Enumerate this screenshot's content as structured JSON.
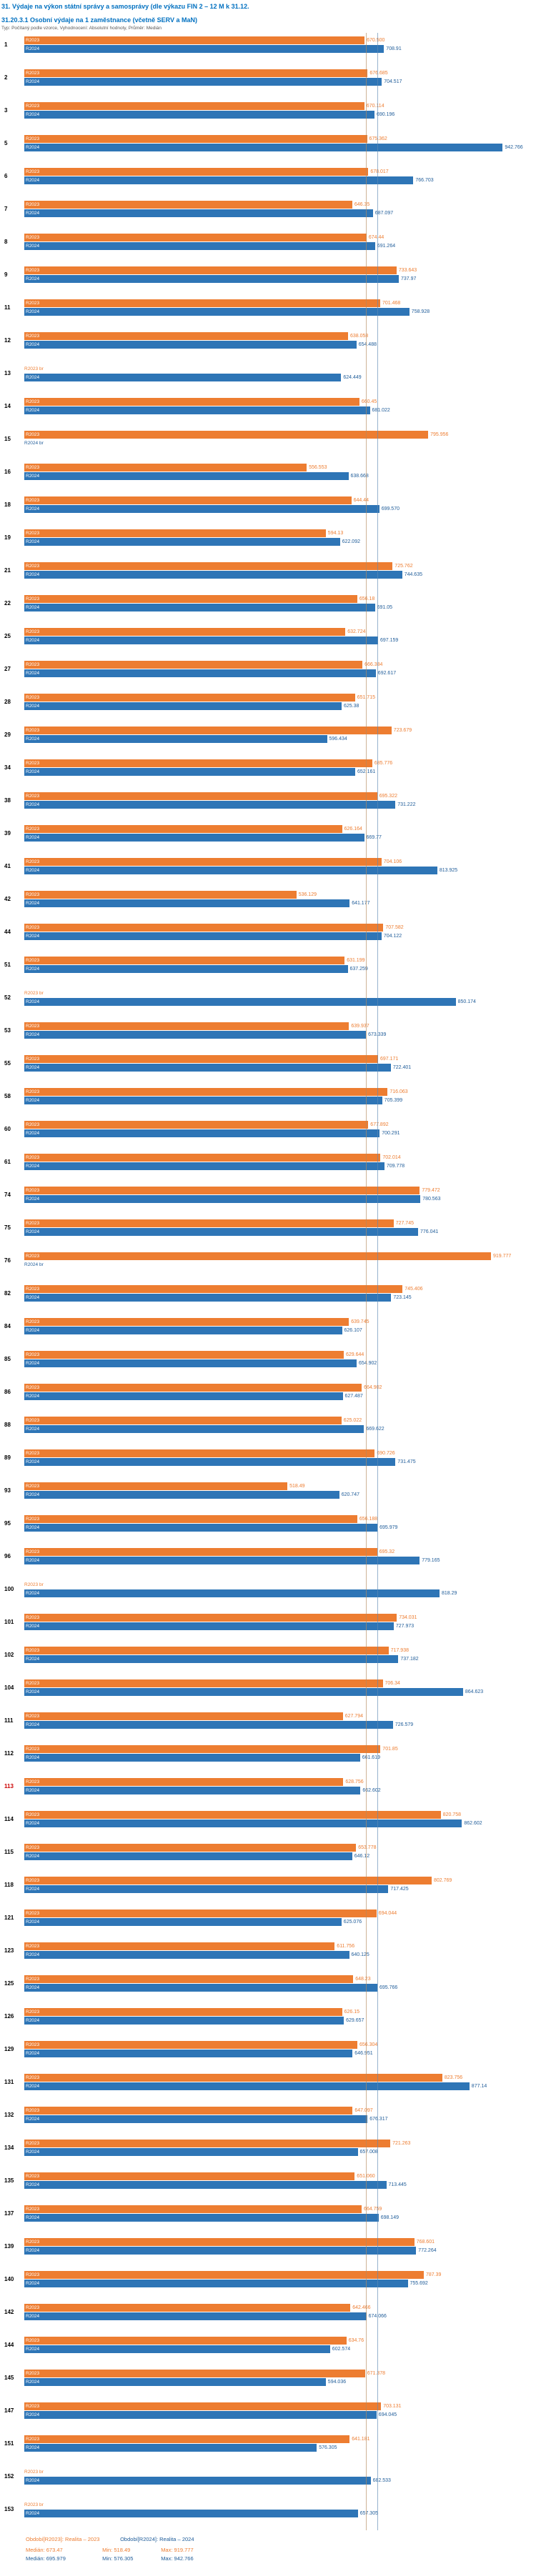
{
  "header": {
    "title": "31. Výdaje na výkon státní správy a samosprávy (dle výkazu FIN 2 – 12 M k 31.12.",
    "subtitle": "31.20.3.1 Osobní výdaje na 1 zaměstnance (včetně SERV a MaN)",
    "meta": "Typ: Počítaný podle vzorce, Vyhodnocení: Absolutní hodnoty, Průměr: Medián"
  },
  "colors": {
    "bar_2023": "#ED7D31",
    "bar_2024": "#2E75B6",
    "value_label_2023": "#ED7D31",
    "value_label_2024": "#1F5C99",
    "title_text": "#0070C0",
    "highlighted_row_label": "#CC0000",
    "median_line_2023": "#b38b5d",
    "median_line_2024": "#5d8bb3"
  },
  "legend": {
    "s2023": {
      "title": "Období[R2023]: Realita – 2023",
      "median": "Medián: 673.47",
      "min": "Min: 518.49",
      "max": "Max: 919.777"
    },
    "s2024": {
      "title": "Období[R2024]: Realita – 2024",
      "median": "Medián: 695.979",
      "min": "Min: 576.305",
      "max": "Max: 942.766"
    }
  },
  "chart_data": {
    "type": "bar",
    "orientation": "horizontal",
    "title": "31.20.3.1 Osobní výdaje na 1 zaměstnance (včetně SERV a MaN)",
    "xlim": [
      0,
      1000
    ],
    "grid": false,
    "legend_position": "bottom",
    "series_labels": {
      "s2023": "R2023",
      "s2024": "R2024"
    },
    "median_2023": 673.47,
    "median_2024": 695.979,
    "highlighted_row": "113",
    "rows": [
      {
        "id": "1",
        "v2023": 670.5,
        "t2023": "670.500",
        "v2024": 708.91,
        "t2024": "708.91"
      },
      {
        "id": "2",
        "v2023": 676.685,
        "t2023": "676.685",
        "v2024": 704.517,
        "t2024": "704.517"
      },
      {
        "id": "3",
        "v2023": 670.114,
        "t2023": "670.114",
        "v2024": 690.196,
        "t2024": "690.196"
      },
      {
        "id": "5",
        "v2023": 675.362,
        "t2023": "675.362",
        "v2024": 942.766,
        "t2024": "942.766"
      },
      {
        "id": "6",
        "v2023": 678.017,
        "t2023": "678.017",
        "v2024": 766.703,
        "t2024": "766.703"
      },
      {
        "id": "7",
        "v2023": 646.35,
        "t2023": "646.35",
        "v2024": 687.097,
        "t2024": "687.097"
      },
      {
        "id": "8",
        "v2023": 674.44,
        "t2023": "674.44",
        "v2024": 691.264,
        "t2024": "691.264"
      },
      {
        "id": "9",
        "v2023": 733.643,
        "t2023": "733.643",
        "v2024": 737.97,
        "t2024": "737.97"
      },
      {
        "id": "11",
        "v2023": 701.468,
        "t2023": "701.468",
        "v2024": 758.928,
        "t2024": "758.928"
      },
      {
        "id": "12",
        "v2023": 638.058,
        "t2023": "638.058",
        "v2024": 654.488,
        "t2024": "654.488"
      },
      {
        "id": "13",
        "v2023": null,
        "t2023": "br",
        "v2024": 624.449,
        "t2024": "624.449"
      },
      {
        "id": "14",
        "v2023": 660.45,
        "t2023": "660.45",
        "v2024": 681.022,
        "t2024": "681.022"
      },
      {
        "id": "15",
        "v2023": 795.956,
        "t2023": "795.956",
        "v2024": null,
        "t2024": "br"
      },
      {
        "id": "16",
        "v2023": 556.553,
        "t2023": "556.553",
        "v2024": 638.668,
        "t2024": "638.668"
      },
      {
        "id": "18",
        "v2023": 644.44,
        "t2023": "644.44",
        "v2024": 699.57,
        "t2024": "699.570"
      },
      {
        "id": "19",
        "v2023": 594.13,
        "t2023": "594.13",
        "v2024": 622.092,
        "t2024": "622.092"
      },
      {
        "id": "21",
        "v2023": 725.762,
        "t2023": "725.762",
        "v2024": 744.635,
        "t2024": "744.635"
      },
      {
        "id": "22",
        "v2023": 656.18,
        "t2023": "656.18",
        "v2024": 691.05,
        "t2024": "691.05"
      },
      {
        "id": "25",
        "v2023": 632.724,
        "t2023": "632.724",
        "v2024": 697.159,
        "t2024": "697.159"
      },
      {
        "id": "27",
        "v2023": 666.384,
        "t2023": "666.384",
        "v2024": 692.617,
        "t2024": "692.617"
      },
      {
        "id": "28",
        "v2023": 651.715,
        "t2023": "651.715",
        "v2024": 625.38,
        "t2024": "625.38"
      },
      {
        "id": "29",
        "v2023": 723.679,
        "t2023": "723.679",
        "v2024": 596.434,
        "t2024": "596.434"
      },
      {
        "id": "34",
        "v2023": 685.776,
        "t2023": "685.776",
        "v2024": 652.161,
        "t2024": "652.161"
      },
      {
        "id": "38",
        "v2023": 695.322,
        "t2023": "695.322",
        "v2024": 731.222,
        "t2024": "731.222"
      },
      {
        "id": "39",
        "v2023": 626.164,
        "t2023": "626.164",
        "v2024": 669.77,
        "t2024": "669.77"
      },
      {
        "id": "41",
        "v2023": 704.106,
        "t2023": "704.106",
        "v2024": 813.925,
        "t2024": "813.925"
      },
      {
        "id": "42",
        "v2023": 536.129,
        "t2023": "536.129",
        "v2024": 641.177,
        "t2024": "641.177"
      },
      {
        "id": "44",
        "v2023": 707.582,
        "t2023": "707.582",
        "v2024": 704.122,
        "t2024": "704.122"
      },
      {
        "id": "51",
        "v2023": 631.199,
        "t2023": "631.199",
        "v2024": 637.259,
        "t2024": "637.259"
      },
      {
        "id": "52",
        "v2023": null,
        "t2023": "br",
        "v2024": 850.174,
        "t2024": "850.174"
      },
      {
        "id": "53",
        "v2023": 639.937,
        "t2023": "639.937",
        "v2024": 673.339,
        "t2024": "673.339"
      },
      {
        "id": "55",
        "v2023": 697.171,
        "t2023": "697.171",
        "v2024": 722.401,
        "t2024": "722.401"
      },
      {
        "id": "58",
        "v2023": 716.063,
        "t2023": "716.063",
        "v2024": 705.399,
        "t2024": "705.399"
      },
      {
        "id": "60",
        "v2023": 677.892,
        "t2023": "677.892",
        "v2024": 700.291,
        "t2024": "700.291"
      },
      {
        "id": "61",
        "v2023": 702.014,
        "t2023": "702.014",
        "v2024": 709.778,
        "t2024": "709.778"
      },
      {
        "id": "74",
        "v2023": 779.472,
        "t2023": "779.472",
        "v2024": 780.563,
        "t2024": "780.563"
      },
      {
        "id": "75",
        "v2023": 727.745,
        "t2023": "727.745",
        "v2024": 776.041,
        "t2024": "776.041"
      },
      {
        "id": "76",
        "v2023": 919.777,
        "t2023": "919.777",
        "v2024": null,
        "t2024": "br"
      },
      {
        "id": "82",
        "v2023": 745.406,
        "t2023": "745.406",
        "v2024": 723.145,
        "t2024": "723.145"
      },
      {
        "id": "84",
        "v2023": 639.745,
        "t2023": "639.745",
        "v2024": 626.107,
        "t2024": "626.107"
      },
      {
        "id": "85",
        "v2023": 629.644,
        "t2023": "629.644",
        "v2024": 654.902,
        "t2024": "654.902"
      },
      {
        "id": "86",
        "v2023": 664.902,
        "t2023": "664.902",
        "v2024": 627.487,
        "t2024": "627.487"
      },
      {
        "id": "88",
        "v2023": 625.022,
        "t2023": "625.022",
        "v2024": 669.622,
        "t2024": "669.622"
      },
      {
        "id": "89",
        "v2023": 690.726,
        "t2023": "690.726",
        "v2024": 731.475,
        "t2024": "731.475"
      },
      {
        "id": "93",
        "v2023": 518.49,
        "t2023": "518.49",
        "v2024": 620.747,
        "t2024": "620.747"
      },
      {
        "id": "95",
        "v2023": 656.188,
        "t2023": "656.188",
        "v2024": 695.979,
        "t2024": "695.979"
      },
      {
        "id": "96",
        "v2023": 695.32,
        "t2023": "695.32",
        "v2024": 779.165,
        "t2024": "779.165"
      },
      {
        "id": "100",
        "v2023": null,
        "t2023": "br",
        "v2024": 818.29,
        "t2024": "818.29"
      },
      {
        "id": "101",
        "v2023": 734.031,
        "t2023": "734.031",
        "v2024": 727.973,
        "t2024": "727.973"
      },
      {
        "id": "102",
        "v2023": 717.938,
        "t2023": "717.938",
        "v2024": 737.182,
        "t2024": "737.182"
      },
      {
        "id": "104",
        "v2023": 706.34,
        "t2023": "706.34",
        "v2024": 864.623,
        "t2024": "864.623"
      },
      {
        "id": "111",
        "v2023": 627.794,
        "t2023": "627.794",
        "v2024": 726.579,
        "t2024": "726.579"
      },
      {
        "id": "112",
        "v2023": 701.85,
        "t2023": "701.85",
        "v2024": 661.619,
        "t2024": "661.619"
      },
      {
        "id": "113",
        "v2023": 628.756,
        "t2023": "628.756",
        "v2024": 662.602,
        "t2024": "662.602"
      },
      {
        "id": "114",
        "v2023": 820.758,
        "t2023": "820.758",
        "v2024": 862.602,
        "t2024": "862.602"
      },
      {
        "id": "115",
        "v2023": 653.778,
        "t2023": "653.778",
        "v2024": 646.12,
        "t2024": "646.12"
      },
      {
        "id": "118",
        "v2023": 802.769,
        "t2023": "802.769",
        "v2024": 717.425,
        "t2024": "717.425"
      },
      {
        "id": "121",
        "v2023": 694.044,
        "t2023": "694.044",
        "v2024": 625.076,
        "t2024": "625.076"
      },
      {
        "id": "123",
        "v2023": 611.756,
        "t2023": "611.756",
        "v2024": 640.125,
        "t2024": "640.125"
      },
      {
        "id": "125",
        "v2023": 648.23,
        "t2023": "648.23",
        "v2024": 695.766,
        "t2024": "695.766"
      },
      {
        "id": "126",
        "v2023": 626.15,
        "t2023": "626.15",
        "v2024": 629.657,
        "t2024": "629.657"
      },
      {
        "id": "129",
        "v2023": 656.304,
        "t2023": "656.304",
        "v2024": 646.951,
        "t2024": "646.951"
      },
      {
        "id": "131",
        "v2023": 823.756,
        "t2023": "823.756",
        "v2024": 877.14,
        "t2024": "877.14"
      },
      {
        "id": "132",
        "v2023": 647.097,
        "t2023": "647.097",
        "v2024": 676.317,
        "t2024": "676.317"
      },
      {
        "id": "134",
        "v2023": 721.263,
        "t2023": "721.263",
        "v2024": 657.008,
        "t2024": "657.008"
      },
      {
        "id": "135",
        "v2023": 651.06,
        "t2023": "651.060",
        "v2024": 713.445,
        "t2024": "713.445"
      },
      {
        "id": "137",
        "v2023": 664.759,
        "t2023": "664.759",
        "v2024": 698.149,
        "t2024": "698.149"
      },
      {
        "id": "139",
        "v2023": 768.601,
        "t2023": "768.601",
        "v2024": 772.264,
        "t2024": "772.264"
      },
      {
        "id": "140",
        "v2023": 787.39,
        "t2023": "787.39",
        "v2024": 755.692,
        "t2024": "755.692"
      },
      {
        "id": "142",
        "v2023": 642.466,
        "t2023": "642.466",
        "v2024": 674.066,
        "t2024": "674.066"
      },
      {
        "id": "144",
        "v2023": 634.76,
        "t2023": "634.76",
        "v2024": 602.574,
        "t2024": "602.574"
      },
      {
        "id": "145",
        "v2023": 671.378,
        "t2023": "671.378",
        "v2024": 594.036,
        "t2024": "594.036"
      },
      {
        "id": "147",
        "v2023": 703.131,
        "t2023": "703.131",
        "v2024": 694.045,
        "t2024": "694.045"
      },
      {
        "id": "151",
        "v2023": 641.181,
        "t2023": "641.181",
        "v2024": 576.305,
        "t2024": "576.305"
      },
      {
        "id": "152",
        "v2023": null,
        "t2023": "br",
        "v2024": 682.533,
        "t2024": "682.533"
      },
      {
        "id": "153",
        "v2023": null,
        "t2023": "br",
        "v2024": 657.305,
        "t2024": "657.305"
      }
    ]
  }
}
